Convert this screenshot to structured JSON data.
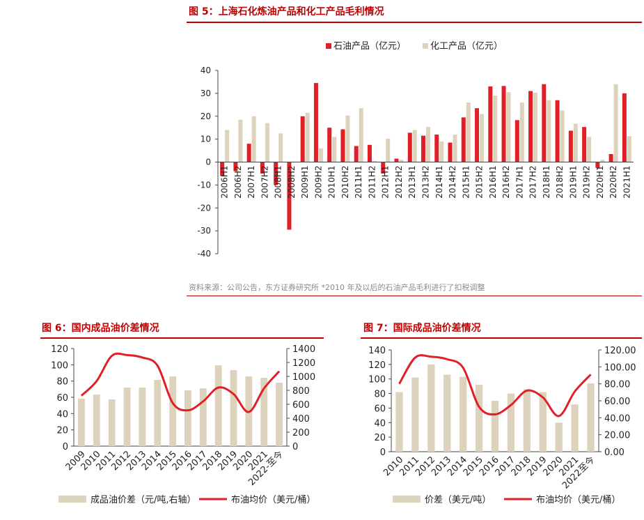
{
  "figures": [
    {
      "title": "图 5：上海石化炼油产品和化工产品毛利情况",
      "source": "资料来源：公司公告，东方证券研究所 *2010 年及以后的石油产品毛利进行了扣税调整"
    },
    {
      "title": "图 6：国内成品油价差情况"
    },
    {
      "title": "图 7：国际成品油价差情况"
    }
  ],
  "colors": {
    "red": "#e11f26",
    "beige": "#ddd3bd",
    "title_red": "#c00000"
  },
  "chart_data": [
    {
      "type": "bar",
      "categories": [
        "2006H1",
        "2006H2",
        "2007H1",
        "2007H2",
        "2008H1",
        "2008H2",
        "2009H1",
        "2009H2",
        "2010H1",
        "2010H2",
        "2011H1",
        "2011H2",
        "2012H1",
        "2012H2",
        "2013H1",
        "2013H2",
        "2014H1",
        "2014H2",
        "2015H1",
        "2015H2",
        "2016H1",
        "2016H2",
        "2017H1",
        "2017H2",
        "2018H1",
        "2018H2",
        "2019H1",
        "2019H2",
        "2020H1",
        "2020H2",
        "2021H1"
      ],
      "series": [
        {
          "name": "石油产品（亿元）",
          "color": "#e11f26",
          "values": [
            -6,
            -4,
            8,
            -5,
            -10,
            -29.5,
            20,
            34.5,
            15,
            14.3,
            7,
            7.5,
            -5,
            1.5,
            12.8,
            11.5,
            12,
            8.5,
            19.5,
            23.5,
            33,
            33.2,
            18.3,
            31,
            34,
            27,
            13.7,
            15.3,
            -2.5,
            3.5,
            30
          ]
        },
        {
          "name": "化工产品（亿元）",
          "color": "#ddd3bd",
          "values": [
            14,
            18.5,
            20,
            17,
            12.5,
            0,
            21.5,
            6,
            11,
            20.3,
            23.5,
            0.5,
            10.2,
            1,
            14,
            15.3,
            9,
            12,
            26,
            21,
            29,
            30.5,
            26,
            30.3,
            27,
            22.5,
            16.8,
            11,
            1,
            34,
            11.3
          ]
        }
      ],
      "ylim": [
        -40,
        40
      ],
      "yticks": [
        -40,
        -30,
        -20,
        -10,
        0,
        10,
        20,
        30,
        40
      ],
      "legend": "top"
    },
    {
      "type": "bar",
      "categories": [
        "2009",
        "2010",
        "2011",
        "2012",
        "2013",
        "2014",
        "2015",
        "2016",
        "2017",
        "2018",
        "2019",
        "2020",
        "2021",
        "2022-至今"
      ],
      "series": [
        {
          "name": "成品油价差（元/吨,右轴）",
          "type": "bar",
          "axis": "right",
          "color": "#ddd3bd",
          "values": [
            680,
            740,
            670,
            840,
            840,
            950,
            1000,
            800,
            830,
            1160,
            1090,
            1000,
            980,
            910
          ]
        },
        {
          "name": "布油均价（美元/桶）",
          "type": "line",
          "axis": "left",
          "color": "#e11f26",
          "values": [
            62,
            80,
            111,
            112,
            109,
            99,
            53,
            44,
            55,
            72,
            64,
            42,
            71,
            92
          ]
        }
      ],
      "ylim_left": [
        0,
        120
      ],
      "yticks_left": [
        0,
        20,
        40,
        60,
        80,
        100,
        120
      ],
      "ylim_right": [
        0,
        1400
      ],
      "yticks_right": [
        0,
        200,
        400,
        600,
        800,
        1000,
        1200,
        1400
      ],
      "legend": "bottom"
    },
    {
      "type": "bar",
      "categories": [
        "2010",
        "2011",
        "2012",
        "2013",
        "2014",
        "2015",
        "2016",
        "2017",
        "2018",
        "2019",
        "2020",
        "2021",
        "2022至今"
      ],
      "series": [
        {
          "name": "价差（美元/吨）",
          "type": "bar",
          "axis": "left",
          "color": "#ddd3bd",
          "values": [
            82,
            102,
            120,
            106,
            103,
            92,
            70,
            80,
            86,
            82,
            40,
            65,
            94
          ]
        },
        {
          "name": "布油均价（美元/桶）",
          "type": "line",
          "axis": "right",
          "color": "#e11f26",
          "values": [
            80,
            111,
            112,
            109,
            99,
            53,
            44,
            55,
            72,
            64,
            42,
            71,
            91
          ]
        }
      ],
      "ylim_left": [
        0,
        140
      ],
      "yticks_left": [
        0,
        20,
        40,
        60,
        80,
        100,
        120,
        140
      ],
      "ylim_right": [
        0,
        120
      ],
      "yticks_right": [
        "0.00",
        "20.00",
        "40.00",
        "60.00",
        "80.00",
        "100.00",
        "120.00"
      ],
      "legend": "bottom"
    }
  ]
}
